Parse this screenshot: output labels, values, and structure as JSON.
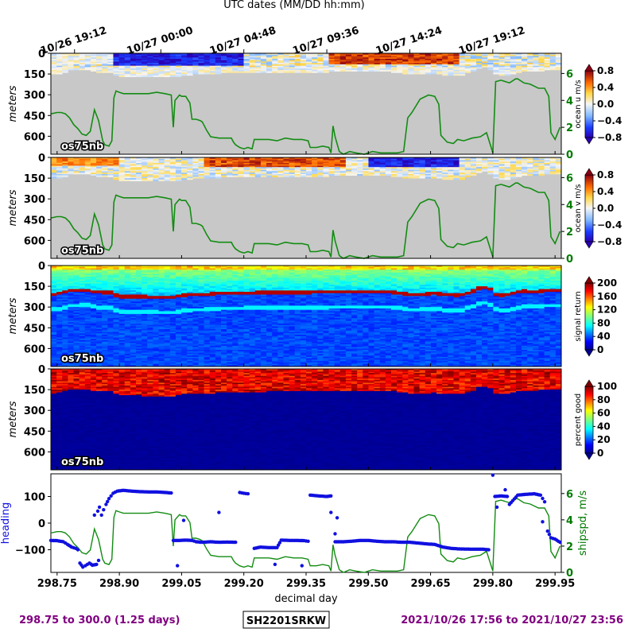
{
  "chart_data": {
    "type": "heatmap",
    "top_axis_label": "UTC dates (MM/DD hh:mm)",
    "top_ticks": [
      {
        "x": 298.792,
        "label": "10/26 19:12"
      },
      {
        "x": 299.0,
        "label": "10/27 00:00"
      },
      {
        "x": 299.2,
        "label": "10/27 04:48"
      },
      {
        "x": 299.4,
        "label": "10/27 09:36"
      },
      {
        "x": 299.6,
        "label": "10/27 14:24"
      },
      {
        "x": 299.8,
        "label": "10/27 19:12"
      }
    ],
    "xlim": [
      298.735,
      299.965
    ],
    "xlabel": "decimal day",
    "x_ticks": [
      "298.75",
      "298.90",
      "299.05",
      "299.20",
      "299.35",
      "299.50",
      "299.65",
      "299.80",
      "299.95"
    ],
    "x_tick_values": [
      298.75,
      298.9,
      299.05,
      299.2,
      299.35,
      299.5,
      299.65,
      299.8,
      299.95
    ],
    "depth_ylim": [
      0,
      730
    ],
    "depth_ticks": [
      "0",
      "150",
      "300",
      "450",
      "600"
    ],
    "depth_tick_values": [
      0,
      150,
      300,
      450,
      600
    ],
    "depth_ylabel": "meters",
    "panel_tag": "os75nb",
    "shipspd_ticks": [
      "0",
      "2",
      "4",
      "6"
    ],
    "shipspd_tick_values": [
      0,
      2,
      4,
      6
    ],
    "shipspd_ylim": [
      0,
      7.5
    ],
    "shipspd_ylabel": "shipspd, m/s",
    "heading_ylabel": "heading",
    "heading_ticks": [
      "100",
      "0",
      "−100"
    ],
    "heading_tick_values": [
      100,
      0,
      -100
    ],
    "heading_ylim": [
      -185,
      185
    ],
    "panels": [
      {
        "key": "u",
        "colorbar_label": "ocean u m/s",
        "colorbar_ticks": [
          "0.8",
          "0.4",
          "0.0",
          "−0.4",
          "−0.8"
        ],
        "colorbar_tick_values": [
          0.8,
          0.4,
          0.0,
          -0.4,
          -0.8
        ],
        "range": [
          -0.8,
          0.8
        ],
        "colormap": "jet-diverging"
      },
      {
        "key": "v",
        "colorbar_label": "ocean v m/s",
        "colorbar_ticks": [
          "0.8",
          "0.4",
          "0.0",
          "−0.4",
          "−0.8"
        ],
        "colorbar_tick_values": [
          0.8,
          0.4,
          0.0,
          -0.4,
          -0.8
        ],
        "range": [
          -0.8,
          0.8
        ],
        "colormap": "jet-diverging"
      },
      {
        "key": "amp",
        "colorbar_label": "signal return",
        "colorbar_ticks": [
          "200",
          "160",
          "120",
          "80",
          "40",
          "0"
        ],
        "colorbar_tick_values": [
          200,
          160,
          120,
          80,
          40,
          0
        ],
        "range": [
          0,
          200
        ],
        "colormap": "jet"
      },
      {
        "key": "pg",
        "colorbar_label": "percent good",
        "colorbar_ticks": [
          "100",
          "80",
          "60",
          "40",
          "20",
          "0"
        ],
        "colorbar_tick_values": [
          100,
          80,
          60,
          40,
          20,
          0
        ],
        "range": [
          0,
          100
        ],
        "colormap": "jet"
      }
    ],
    "shipspd_series": [
      [
        298.735,
        3.0
      ],
      [
        298.75,
        3.1
      ],
      [
        298.76,
        3.1
      ],
      [
        298.77,
        3.0
      ],
      [
        298.78,
        2.7
      ],
      [
        298.79,
        2.2
      ],
      [
        298.8,
        1.9
      ],
      [
        298.81,
        1.5
      ],
      [
        298.82,
        1.4
      ],
      [
        298.83,
        1.7
      ],
      [
        298.84,
        3.3
      ],
      [
        298.85,
        2.5
      ],
      [
        298.86,
        1.0
      ],
      [
        298.865,
        0.7
      ],
      [
        298.875,
        0.6
      ],
      [
        298.882,
        1.0
      ],
      [
        298.887,
        4.2
      ],
      [
        298.892,
        4.7
      ],
      [
        298.9,
        4.6
      ],
      [
        298.91,
        4.5
      ],
      [
        298.93,
        4.5
      ],
      [
        298.95,
        4.5
      ],
      [
        298.97,
        4.5
      ],
      [
        298.99,
        4.6
      ],
      [
        299.01,
        4.5
      ],
      [
        299.025,
        4.4
      ],
      [
        299.03,
        2.0
      ],
      [
        299.034,
        4.0
      ],
      [
        299.045,
        4.4
      ],
      [
        299.05,
        4.3
      ],
      [
        299.06,
        4.3
      ],
      [
        299.07,
        3.8
      ],
      [
        299.075,
        2.6
      ],
      [
        299.085,
        2.6
      ],
      [
        299.095,
        2.5
      ],
      [
        299.1,
        2.4
      ],
      [
        299.11,
        1.8
      ],
      [
        299.12,
        1.3
      ],
      [
        299.14,
        1.2
      ],
      [
        299.16,
        1.2
      ],
      [
        299.17,
        1.2
      ],
      [
        299.175,
        0.9
      ],
      [
        299.18,
        0.7
      ],
      [
        299.19,
        0.5
      ],
      [
        299.2,
        0.4
      ],
      [
        299.21,
        0.5
      ],
      [
        299.22,
        0.4
      ],
      [
        299.225,
        1.1
      ],
      [
        299.24,
        1.1
      ],
      [
        299.26,
        1.1
      ],
      [
        299.28,
        1.0
      ],
      [
        299.3,
        1.2
      ],
      [
        299.32,
        1.1
      ],
      [
        299.34,
        1.1
      ],
      [
        299.355,
        1.0
      ],
      [
        299.36,
        0.5
      ],
      [
        299.375,
        0.5
      ],
      [
        299.39,
        0.6
      ],
      [
        299.405,
        0.5
      ],
      [
        299.41,
        0.1
      ],
      [
        299.415,
        2.1
      ],
      [
        299.42,
        1.3
      ],
      [
        299.43,
        0.2
      ],
      [
        299.44,
        0.0
      ],
      [
        299.455,
        0.2
      ],
      [
        299.47,
        0.1
      ],
      [
        299.49,
        0.0
      ],
      [
        299.51,
        0.2
      ],
      [
        299.53,
        0.1
      ],
      [
        299.55,
        0.1
      ],
      [
        299.57,
        0.1
      ],
      [
        299.585,
        0.2
      ],
      [
        299.595,
        2.7
      ],
      [
        299.605,
        3.1
      ],
      [
        299.625,
        4.1
      ],
      [
        299.645,
        4.4
      ],
      [
        299.66,
        4.3
      ],
      [
        299.67,
        3.7
      ],
      [
        299.675,
        1.4
      ],
      [
        299.69,
        0.9
      ],
      [
        299.705,
        0.8
      ],
      [
        299.715,
        1.1
      ],
      [
        299.73,
        1.0
      ],
      [
        299.75,
        1.2
      ],
      [
        299.77,
        1.3
      ],
      [
        299.785,
        1.6
      ],
      [
        299.795,
        0.6
      ],
      [
        299.8,
        0.1
      ],
      [
        299.807,
        5.4
      ],
      [
        299.82,
        5.5
      ],
      [
        299.84,
        5.3
      ],
      [
        299.855,
        5.6
      ],
      [
        299.86,
        5.6
      ],
      [
        299.875,
        5.3
      ],
      [
        299.89,
        5.2
      ],
      [
        299.91,
        4.9
      ],
      [
        299.925,
        4.9
      ],
      [
        299.935,
        4.3
      ],
      [
        299.94,
        1.6
      ],
      [
        299.95,
        1.1
      ],
      [
        299.962,
        2.0
      ]
    ],
    "heading_series": [
      [
        298.735,
        -65
      ],
      [
        298.75,
        -66
      ],
      [
        298.765,
        -70
      ],
      [
        298.775,
        -80
      ],
      [
        298.785,
        -90
      ],
      [
        298.795,
        -95
      ],
      [
        298.8,
        -100
      ],
      [
        298.805,
        -150
      ],
      [
        298.812,
        -165
      ],
      [
        298.818,
        -160
      ],
      [
        298.828,
        -150
      ],
      [
        298.835,
        -158
      ],
      [
        298.845,
        -155
      ],
      [
        298.85,
        -140
      ],
      [
        298.857,
        30
      ],
      [
        298.862,
        50
      ],
      [
        298.868,
        70
      ],
      [
        298.875,
        92
      ],
      [
        298.885,
        112
      ],
      [
        298.895,
        120
      ],
      [
        298.91,
        123
      ],
      [
        298.93,
        120
      ],
      [
        298.95,
        118
      ],
      [
        298.97,
        117
      ],
      [
        298.99,
        117
      ],
      [
        299.01,
        115
      ],
      [
        299.025,
        113
      ],
      [
        299.03,
        -65
      ],
      [
        299.045,
        -65
      ],
      [
        299.06,
        -64
      ],
      [
        299.075,
        -65
      ],
      [
        299.085,
        -70
      ],
      [
        299.1,
        -72
      ],
      [
        299.12,
        -70
      ],
      [
        299.14,
        -72
      ],
      [
        299.16,
        -71
      ],
      [
        299.18,
        -72
      ],
      [
        299.19,
        115
      ],
      [
        299.2,
        112
      ],
      [
        299.21,
        110
      ],
      [
        299.225,
        -95
      ],
      [
        299.24,
        -90
      ],
      [
        299.26,
        -92
      ],
      [
        299.28,
        -92
      ],
      [
        299.29,
        -64
      ],
      [
        299.31,
        -65
      ],
      [
        299.33,
        -65
      ],
      [
        299.345,
        -66
      ],
      [
        299.355,
        -68
      ],
      [
        299.36,
        105
      ],
      [
        299.38,
        102
      ],
      [
        299.4,
        100
      ],
      [
        299.41,
        102
      ],
      [
        299.42,
        -70
      ],
      [
        299.44,
        -70
      ],
      [
        299.46,
        -68
      ],
      [
        299.48,
        -65
      ],
      [
        299.5,
        -65
      ],
      [
        299.52,
        -68
      ],
      [
        299.54,
        -70
      ],
      [
        299.56,
        -70
      ],
      [
        299.58,
        -72
      ],
      [
        299.6,
        -72
      ],
      [
        299.62,
        -75
      ],
      [
        299.64,
        -78
      ],
      [
        299.66,
        -80
      ],
      [
        299.68,
        -90
      ],
      [
        299.7,
        -95
      ],
      [
        299.72,
        -97
      ],
      [
        299.75,
        -98
      ],
      [
        299.775,
        -98
      ],
      [
        299.79,
        -100
      ],
      [
        299.805,
        100
      ],
      [
        299.82,
        102
      ],
      [
        299.835,
        100
      ],
      [
        299.84,
        70
      ],
      [
        299.86,
        105
      ],
      [
        299.88,
        108
      ],
      [
        299.9,
        110
      ],
      [
        299.915,
        105
      ],
      [
        299.925,
        80
      ],
      [
        299.932,
        -30
      ],
      [
        299.94,
        -55
      ],
      [
        299.95,
        -60
      ],
      [
        299.962,
        -72
      ]
    ],
    "heading_outliers": [
      [
        298.84,
        30
      ],
      [
        298.848,
        45
      ],
      [
        298.852,
        60
      ],
      [
        299.04,
        -160
      ],
      [
        299.055,
        10
      ],
      [
        299.14,
        40
      ],
      [
        299.275,
        -155
      ],
      [
        299.34,
        -160
      ],
      [
        299.41,
        40
      ],
      [
        299.425,
        20
      ],
      [
        299.42,
        -40
      ],
      [
        299.8,
        180
      ],
      [
        299.83,
        125
      ],
      [
        299.92,
        5
      ],
      [
        299.81,
        60
      ]
    ],
    "bottom_depth": [
      [
        298.735,
        150
      ],
      [
        298.76,
        140
      ],
      [
        298.78,
        120
      ],
      [
        298.8,
        120
      ],
      [
        298.82,
        115
      ],
      [
        298.84,
        130
      ],
      [
        298.86,
        135
      ],
      [
        298.88,
        135
      ],
      [
        298.9,
        165
      ],
      [
        298.92,
        165
      ],
      [
        298.95,
        165
      ],
      [
        299.0,
        170
      ],
      [
        299.03,
        170
      ],
      [
        299.05,
        155
      ],
      [
        299.08,
        150
      ],
      [
        299.1,
        150
      ],
      [
        299.15,
        140
      ],
      [
        299.2,
        140
      ],
      [
        299.25,
        135
      ],
      [
        299.3,
        135
      ],
      [
        299.35,
        135
      ],
      [
        299.4,
        130
      ],
      [
        299.45,
        130
      ],
      [
        299.5,
        130
      ],
      [
        299.55,
        130
      ],
      [
        299.58,
        140
      ],
      [
        299.6,
        150
      ],
      [
        299.63,
        150
      ],
      [
        299.66,
        140
      ],
      [
        299.68,
        150
      ],
      [
        299.72,
        155
      ],
      [
        299.75,
        130
      ],
      [
        299.77,
        100
      ],
      [
        299.79,
        100
      ],
      [
        299.81,
        155
      ],
      [
        299.84,
        150
      ],
      [
        299.87,
        125
      ],
      [
        299.9,
        130
      ],
      [
        299.93,
        120
      ],
      [
        299.965,
        120
      ]
    ]
  },
  "footer": {
    "left": "298.75 to 300.0 (1.25 days)",
    "center": "SH2201SRKW",
    "right": "2021/10/26 17:56 to 2021/10/27 23:56"
  },
  "colors": {
    "ship_line": "#138c13",
    "heading_dots": "#1010e0",
    "mask_gray": "#c8c8c8",
    "footer_text": "#800080",
    "green_ticks": "#007a00"
  }
}
